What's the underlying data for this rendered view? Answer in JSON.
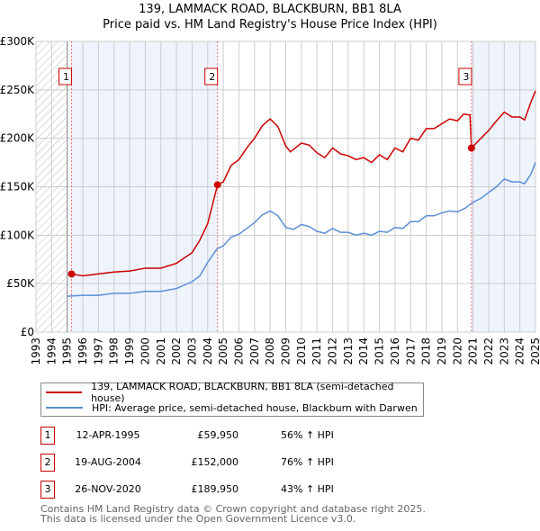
{
  "title": "139, LAMMACK ROAD, BLACKBURN, BB1 8LA",
  "subtitle": "Price paid vs. HM Land Registry's House Price Index (HPI)",
  "chart_data": {
    "type": "line",
    "xlim": [
      1993,
      2025
    ],
    "ylim": [
      0,
      300000
    ],
    "yticks": [
      {
        "v": 0,
        "label": "£0"
      },
      {
        "v": 50000,
        "label": "£50K"
      },
      {
        "v": 100000,
        "label": "£100K"
      },
      {
        "v": 150000,
        "label": "£150K"
      },
      {
        "v": 200000,
        "label": "£200K"
      },
      {
        "v": 250000,
        "label": "£250K"
      },
      {
        "v": 300000,
        "label": "£300K"
      }
    ],
    "xticks": [
      "1993",
      "1994",
      "1995",
      "1996",
      "1997",
      "1998",
      "1999",
      "2000",
      "2001",
      "2002",
      "2003",
      "2004",
      "2005",
      "2006",
      "2007",
      "2008",
      "2009",
      "2010",
      "2011",
      "2012",
      "2013",
      "2014",
      "2015",
      "2016",
      "2017",
      "2018",
      "2019",
      "2020",
      "2021",
      "2022",
      "2023",
      "2024",
      "2025"
    ],
    "colors": {
      "property": "#cc0000",
      "hpi": "#5b8fd6",
      "shade": "#eef3fc"
    },
    "series": [
      {
        "name": "139, LAMMACK ROAD, BLACKBURN, BB1 8LA (semi-detached house)",
        "points": [
          [
            1995.28,
            59950
          ],
          [
            1996,
            58000
          ],
          [
            1997,
            60000
          ],
          [
            1998,
            62000
          ],
          [
            1999,
            63000
          ],
          [
            2000,
            66000
          ],
          [
            2001,
            66000
          ],
          [
            2002,
            71000
          ],
          [
            2003,
            82000
          ],
          [
            2003.5,
            95000
          ],
          [
            2004,
            112000
          ],
          [
            2004.63,
            152000
          ],
          [
            2005,
            155000
          ],
          [
            2005.5,
            172000
          ],
          [
            2006,
            178000
          ],
          [
            2006.5,
            190000
          ],
          [
            2007,
            200000
          ],
          [
            2007.5,
            213000
          ],
          [
            2008,
            220000
          ],
          [
            2008.5,
            212000
          ],
          [
            2009,
            192000
          ],
          [
            2009.3,
            186000
          ],
          [
            2010,
            195000
          ],
          [
            2010.5,
            193000
          ],
          [
            2011,
            185000
          ],
          [
            2011.5,
            180000
          ],
          [
            2012,
            190000
          ],
          [
            2012.5,
            184000
          ],
          [
            2013,
            182000
          ],
          [
            2013.5,
            178000
          ],
          [
            2014,
            180000
          ],
          [
            2014.5,
            175000
          ],
          [
            2015,
            183000
          ],
          [
            2015.5,
            178000
          ],
          [
            2016,
            190000
          ],
          [
            2016.5,
            186000
          ],
          [
            2017,
            200000
          ],
          [
            2017.5,
            198000
          ],
          [
            2018,
            210000
          ],
          [
            2018.5,
            210000
          ],
          [
            2019,
            215000
          ],
          [
            2019.5,
            220000
          ],
          [
            2020,
            218000
          ],
          [
            2020.4,
            225000
          ],
          [
            2020.8,
            224000
          ],
          [
            2020.9,
            189950
          ],
          [
            2021.5,
            200000
          ],
          [
            2022,
            208000
          ],
          [
            2022.5,
            218000
          ],
          [
            2023,
            227000
          ],
          [
            2023.5,
            222000
          ],
          [
            2024,
            222000
          ],
          [
            2024.3,
            219000
          ],
          [
            2024.7,
            237000
          ],
          [
            2025,
            249000
          ]
        ]
      },
      {
        "name": "HPI: Average price, semi-detached house, Blackburn with Darwen",
        "points": [
          [
            1995,
            37000
          ],
          [
            1996,
            38000
          ],
          [
            1997,
            38000
          ],
          [
            1998,
            40000
          ],
          [
            1999,
            40000
          ],
          [
            2000,
            42000
          ],
          [
            2001,
            42000
          ],
          [
            2002,
            45000
          ],
          [
            2003,
            52000
          ],
          [
            2003.5,
            58000
          ],
          [
            2004,
            72000
          ],
          [
            2004.6,
            86000
          ],
          [
            2005,
            89000
          ],
          [
            2005.5,
            98000
          ],
          [
            2006,
            101000
          ],
          [
            2006.5,
            107000
          ],
          [
            2007,
            113000
          ],
          [
            2007.5,
            121000
          ],
          [
            2008,
            125000
          ],
          [
            2008.5,
            120000
          ],
          [
            2009,
            108000
          ],
          [
            2009.5,
            106000
          ],
          [
            2010,
            111000
          ],
          [
            2010.5,
            109000
          ],
          [
            2011,
            104000
          ],
          [
            2011.5,
            102000
          ],
          [
            2012,
            107000
          ],
          [
            2012.5,
            103000
          ],
          [
            2013,
            103000
          ],
          [
            2013.5,
            100000
          ],
          [
            2014,
            102000
          ],
          [
            2014.5,
            100000
          ],
          [
            2015,
            104000
          ],
          [
            2015.5,
            103000
          ],
          [
            2016,
            108000
          ],
          [
            2016.5,
            107000
          ],
          [
            2017,
            114000
          ],
          [
            2017.5,
            114000
          ],
          [
            2018,
            120000
          ],
          [
            2018.5,
            120000
          ],
          [
            2019,
            123000
          ],
          [
            2019.5,
            125000
          ],
          [
            2020,
            124000
          ],
          [
            2020.5,
            128000
          ],
          [
            2021,
            134000
          ],
          [
            2021.5,
            138000
          ],
          [
            2022,
            144000
          ],
          [
            2022.5,
            150000
          ],
          [
            2023,
            158000
          ],
          [
            2023.5,
            155000
          ],
          [
            2024,
            155000
          ],
          [
            2024.3,
            153000
          ],
          [
            2024.7,
            163000
          ],
          [
            2025,
            175000
          ]
        ]
      }
    ],
    "sales": [
      {
        "label": "1",
        "x": 2004.63,
        "t": 1995.28,
        "price": 59950
      },
      {
        "label": "2",
        "t": 2004.63,
        "price": 152000
      },
      {
        "label": "3",
        "t": 2020.9,
        "price": 189950
      }
    ]
  },
  "legend": {
    "property": "139, LAMMACK ROAD, BLACKBURN, BB1 8LA (semi-detached house)",
    "hpi": "HPI: Average price, semi-detached house, Blackburn with Darwen"
  },
  "table": [
    {
      "num": "1",
      "date": "12-APR-1995",
      "price": "£59,950",
      "hpi": "56% ↑ HPI"
    },
    {
      "num": "2",
      "date": "19-AUG-2004",
      "price": "£152,000",
      "hpi": "76% ↑ HPI"
    },
    {
      "num": "3",
      "date": "26-NOV-2020",
      "price": "£189,950",
      "hpi": "43% ↑ HPI"
    }
  ],
  "footer": {
    "line1": "Contains HM Land Registry data © Crown copyright and database right 2025.",
    "line2": "This data is licensed under the Open Government Licence v3.0."
  }
}
